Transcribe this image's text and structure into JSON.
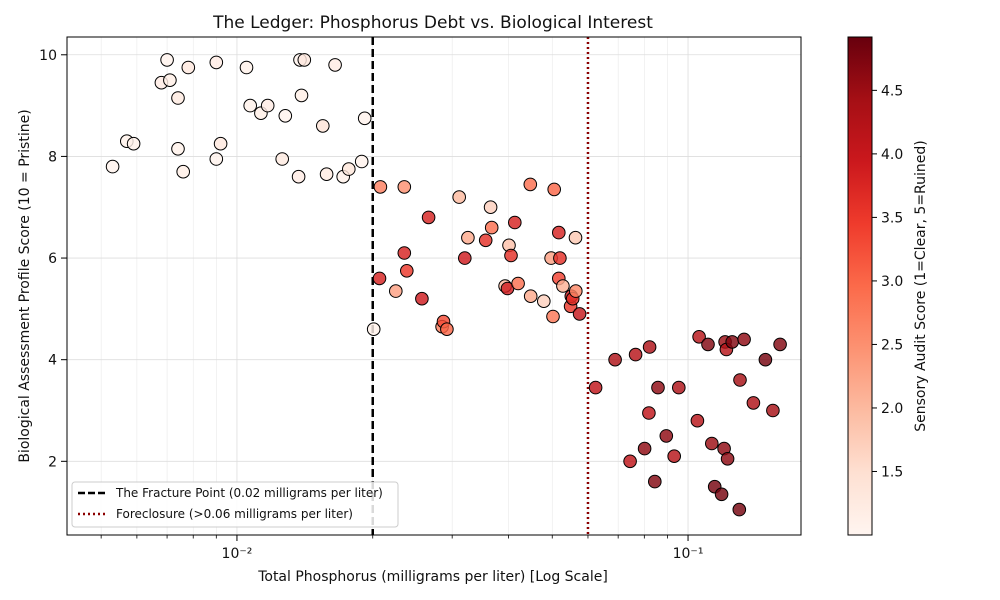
{
  "chart_data": {
    "type": "scatter",
    "title": "The Ledger: Phosphorus Debt vs. Biological Interest",
    "xlabel": "Total Phosphorus (milligrams per liter) [Log Scale]",
    "ylabel": "Biological Assessment Profile Score (10 = Pristine)",
    "xscale": "log",
    "xlim": [
      0.0042,
      0.178
    ],
    "ylim": [
      0.55,
      10.35
    ],
    "grid": true,
    "x_ticks": [
      {
        "value": 0.01,
        "label": "10⁻²"
      },
      {
        "value": 0.1,
        "label": "10⁻¹"
      }
    ],
    "y_ticks": [
      2,
      4,
      6,
      8,
      10
    ],
    "colorbar": {
      "label": "Sensory Audit Score (1=Clear, 5=Ruined)",
      "range": [
        1.0,
        4.92
      ],
      "ticks": [
        1.5,
        2.0,
        2.5,
        3.0,
        3.5,
        4.0,
        4.5
      ],
      "colormap": [
        "#fff5f0",
        "#fee0d2",
        "#fcbba1",
        "#fc9272",
        "#fb6a4a",
        "#ef3b2c",
        "#cb181d",
        "#a50f15",
        "#67000d"
      ]
    },
    "reference_lines": [
      {
        "name": "The Fracture Point (0.02 milligrams per liter)",
        "x": 0.02,
        "style": "dashed",
        "color": "#000000"
      },
      {
        "name": "Foreclosure (>0.06 milligrams per liter)",
        "x": 0.06,
        "style": "dotted",
        "color": "#8b0000"
      }
    ],
    "legend_position": "lower-left",
    "points": [
      {
        "x": 0.0053,
        "y": 7.8,
        "c": 1.05
      },
      {
        "x": 0.0057,
        "y": 8.3,
        "c": 1.1
      },
      {
        "x": 0.0059,
        "y": 8.25,
        "c": 1.1
      },
      {
        "x": 0.0068,
        "y": 9.45,
        "c": 1.2
      },
      {
        "x": 0.007,
        "y": 9.9,
        "c": 1.05
      },
      {
        "x": 0.0071,
        "y": 9.5,
        "c": 1.15
      },
      {
        "x": 0.0074,
        "y": 9.15,
        "c": 1.25
      },
      {
        "x": 0.0074,
        "y": 8.15,
        "c": 1.1
      },
      {
        "x": 0.0076,
        "y": 7.7,
        "c": 1.15
      },
      {
        "x": 0.0078,
        "y": 9.75,
        "c": 1.3
      },
      {
        "x": 0.009,
        "y": 9.85,
        "c": 1.2
      },
      {
        "x": 0.009,
        "y": 7.95,
        "c": 1.05
      },
      {
        "x": 0.0092,
        "y": 8.25,
        "c": 1.3
      },
      {
        "x": 0.0105,
        "y": 9.75,
        "c": 1.1
      },
      {
        "x": 0.0107,
        "y": 9.0,
        "c": 1.1
      },
      {
        "x": 0.0113,
        "y": 8.85,
        "c": 1.15
      },
      {
        "x": 0.0117,
        "y": 9.0,
        "c": 1.2
      },
      {
        "x": 0.0126,
        "y": 7.95,
        "c": 1.25
      },
      {
        "x": 0.0128,
        "y": 8.8,
        "c": 1.05
      },
      {
        "x": 0.0137,
        "y": 7.6,
        "c": 1.2
      },
      {
        "x": 0.0138,
        "y": 9.9,
        "c": 1.05
      },
      {
        "x": 0.0139,
        "y": 9.2,
        "c": 1.15
      },
      {
        "x": 0.0141,
        "y": 9.9,
        "c": 1.3
      },
      {
        "x": 0.0155,
        "y": 8.6,
        "c": 1.4
      },
      {
        "x": 0.0158,
        "y": 7.65,
        "c": 1.25
      },
      {
        "x": 0.0165,
        "y": 9.8,
        "c": 1.2
      },
      {
        "x": 0.0172,
        "y": 7.6,
        "c": 1.1
      },
      {
        "x": 0.0177,
        "y": 7.75,
        "c": 1.35
      },
      {
        "x": 0.0189,
        "y": 7.9,
        "c": 1.05
      },
      {
        "x": 0.0192,
        "y": 8.75,
        "c": 1.05
      },
      {
        "x": 0.0201,
        "y": 4.6,
        "c": 1.1
      },
      {
        "x": 0.0207,
        "y": 5.6,
        "c": 3.8
      },
      {
        "x": 0.0208,
        "y": 7.4,
        "c": 2.7
      },
      {
        "x": 0.0225,
        "y": 5.35,
        "c": 2.3
      },
      {
        "x": 0.0235,
        "y": 7.4,
        "c": 2.5
      },
      {
        "x": 0.0235,
        "y": 6.1,
        "c": 3.8
      },
      {
        "x": 0.0238,
        "y": 5.75,
        "c": 3.5
      },
      {
        "x": 0.0257,
        "y": 5.2,
        "c": 3.9
      },
      {
        "x": 0.0266,
        "y": 6.8,
        "c": 3.8
      },
      {
        "x": 0.0285,
        "y": 4.65,
        "c": 2.7
      },
      {
        "x": 0.0287,
        "y": 4.75,
        "c": 3.3
      },
      {
        "x": 0.0292,
        "y": 4.6,
        "c": 3.0
      },
      {
        "x": 0.0311,
        "y": 7.2,
        "c": 2.0
      },
      {
        "x": 0.032,
        "y": 6.0,
        "c": 3.9
      },
      {
        "x": 0.0325,
        "y": 6.4,
        "c": 2.2
      },
      {
        "x": 0.0356,
        "y": 6.35,
        "c": 3.6
      },
      {
        "x": 0.0365,
        "y": 7.0,
        "c": 1.7
      },
      {
        "x": 0.0367,
        "y": 6.6,
        "c": 2.9
      },
      {
        "x": 0.0393,
        "y": 5.45,
        "c": 2.0
      },
      {
        "x": 0.0398,
        "y": 5.4,
        "c": 3.9
      },
      {
        "x": 0.0401,
        "y": 6.25,
        "c": 1.9
      },
      {
        "x": 0.0405,
        "y": 6.05,
        "c": 3.6
      },
      {
        "x": 0.0413,
        "y": 6.7,
        "c": 3.8
      },
      {
        "x": 0.042,
        "y": 5.5,
        "c": 2.9
      },
      {
        "x": 0.0447,
        "y": 7.45,
        "c": 2.9
      },
      {
        "x": 0.0448,
        "y": 5.25,
        "c": 2.2
      },
      {
        "x": 0.0479,
        "y": 5.15,
        "c": 1.7
      },
      {
        "x": 0.0497,
        "y": 6.0,
        "c": 2.3
      },
      {
        "x": 0.0502,
        "y": 4.85,
        "c": 2.8
      },
      {
        "x": 0.0505,
        "y": 7.35,
        "c": 3.0
      },
      {
        "x": 0.0517,
        "y": 6.5,
        "c": 3.8
      },
      {
        "x": 0.0517,
        "y": 5.6,
        "c": 3.4
      },
      {
        "x": 0.052,
        "y": 6.0,
        "c": 3.6
      },
      {
        "x": 0.0528,
        "y": 5.45,
        "c": 2.1
      },
      {
        "x": 0.0549,
        "y": 5.05,
        "c": 3.5
      },
      {
        "x": 0.0551,
        "y": 5.25,
        "c": 3.9
      },
      {
        "x": 0.0555,
        "y": 5.2,
        "c": 3.6
      },
      {
        "x": 0.0563,
        "y": 6.4,
        "c": 1.8
      },
      {
        "x": 0.0564,
        "y": 5.35,
        "c": 2.6
      },
      {
        "x": 0.0575,
        "y": 4.9,
        "c": 4.0
      },
      {
        "x": 0.0624,
        "y": 3.45,
        "c": 4.1
      },
      {
        "x": 0.0689,
        "y": 4.0,
        "c": 4.3
      },
      {
        "x": 0.0744,
        "y": 2.0,
        "c": 4.1
      },
      {
        "x": 0.0765,
        "y": 4.1,
        "c": 4.2
      },
      {
        "x": 0.0801,
        "y": 2.25,
        "c": 4.6
      },
      {
        "x": 0.0819,
        "y": 2.95,
        "c": 4.1
      },
      {
        "x": 0.0822,
        "y": 4.25,
        "c": 4.3
      },
      {
        "x": 0.0844,
        "y": 1.6,
        "c": 4.7
      },
      {
        "x": 0.0858,
        "y": 3.45,
        "c": 4.6
      },
      {
        "x": 0.0895,
        "y": 2.5,
        "c": 4.6
      },
      {
        "x": 0.0932,
        "y": 2.1,
        "c": 4.2
      },
      {
        "x": 0.0954,
        "y": 3.45,
        "c": 4.3
      },
      {
        "x": 0.1049,
        "y": 2.8,
        "c": 4.2
      },
      {
        "x": 0.1058,
        "y": 4.45,
        "c": 4.2
      },
      {
        "x": 0.1107,
        "y": 4.3,
        "c": 4.7
      },
      {
        "x": 0.1129,
        "y": 2.35,
        "c": 4.5
      },
      {
        "x": 0.1146,
        "y": 1.5,
        "c": 4.8
      },
      {
        "x": 0.1187,
        "y": 1.35,
        "c": 4.8
      },
      {
        "x": 0.1202,
        "y": 2.25,
        "c": 4.6
      },
      {
        "x": 0.1208,
        "y": 4.35,
        "c": 4.5
      },
      {
        "x": 0.1216,
        "y": 4.2,
        "c": 4.2
      },
      {
        "x": 0.1224,
        "y": 2.05,
        "c": 4.6
      },
      {
        "x": 0.1253,
        "y": 4.35,
        "c": 4.7
      },
      {
        "x": 0.1299,
        "y": 1.05,
        "c": 4.8
      },
      {
        "x": 0.1304,
        "y": 3.6,
        "c": 4.4
      },
      {
        "x": 0.1331,
        "y": 4.4,
        "c": 4.6
      },
      {
        "x": 0.1396,
        "y": 3.15,
        "c": 4.3
      },
      {
        "x": 0.1484,
        "y": 4.0,
        "c": 4.8
      },
      {
        "x": 0.1542,
        "y": 3.0,
        "c": 4.4
      },
      {
        "x": 0.16,
        "y": 4.3,
        "c": 4.7
      }
    ]
  }
}
